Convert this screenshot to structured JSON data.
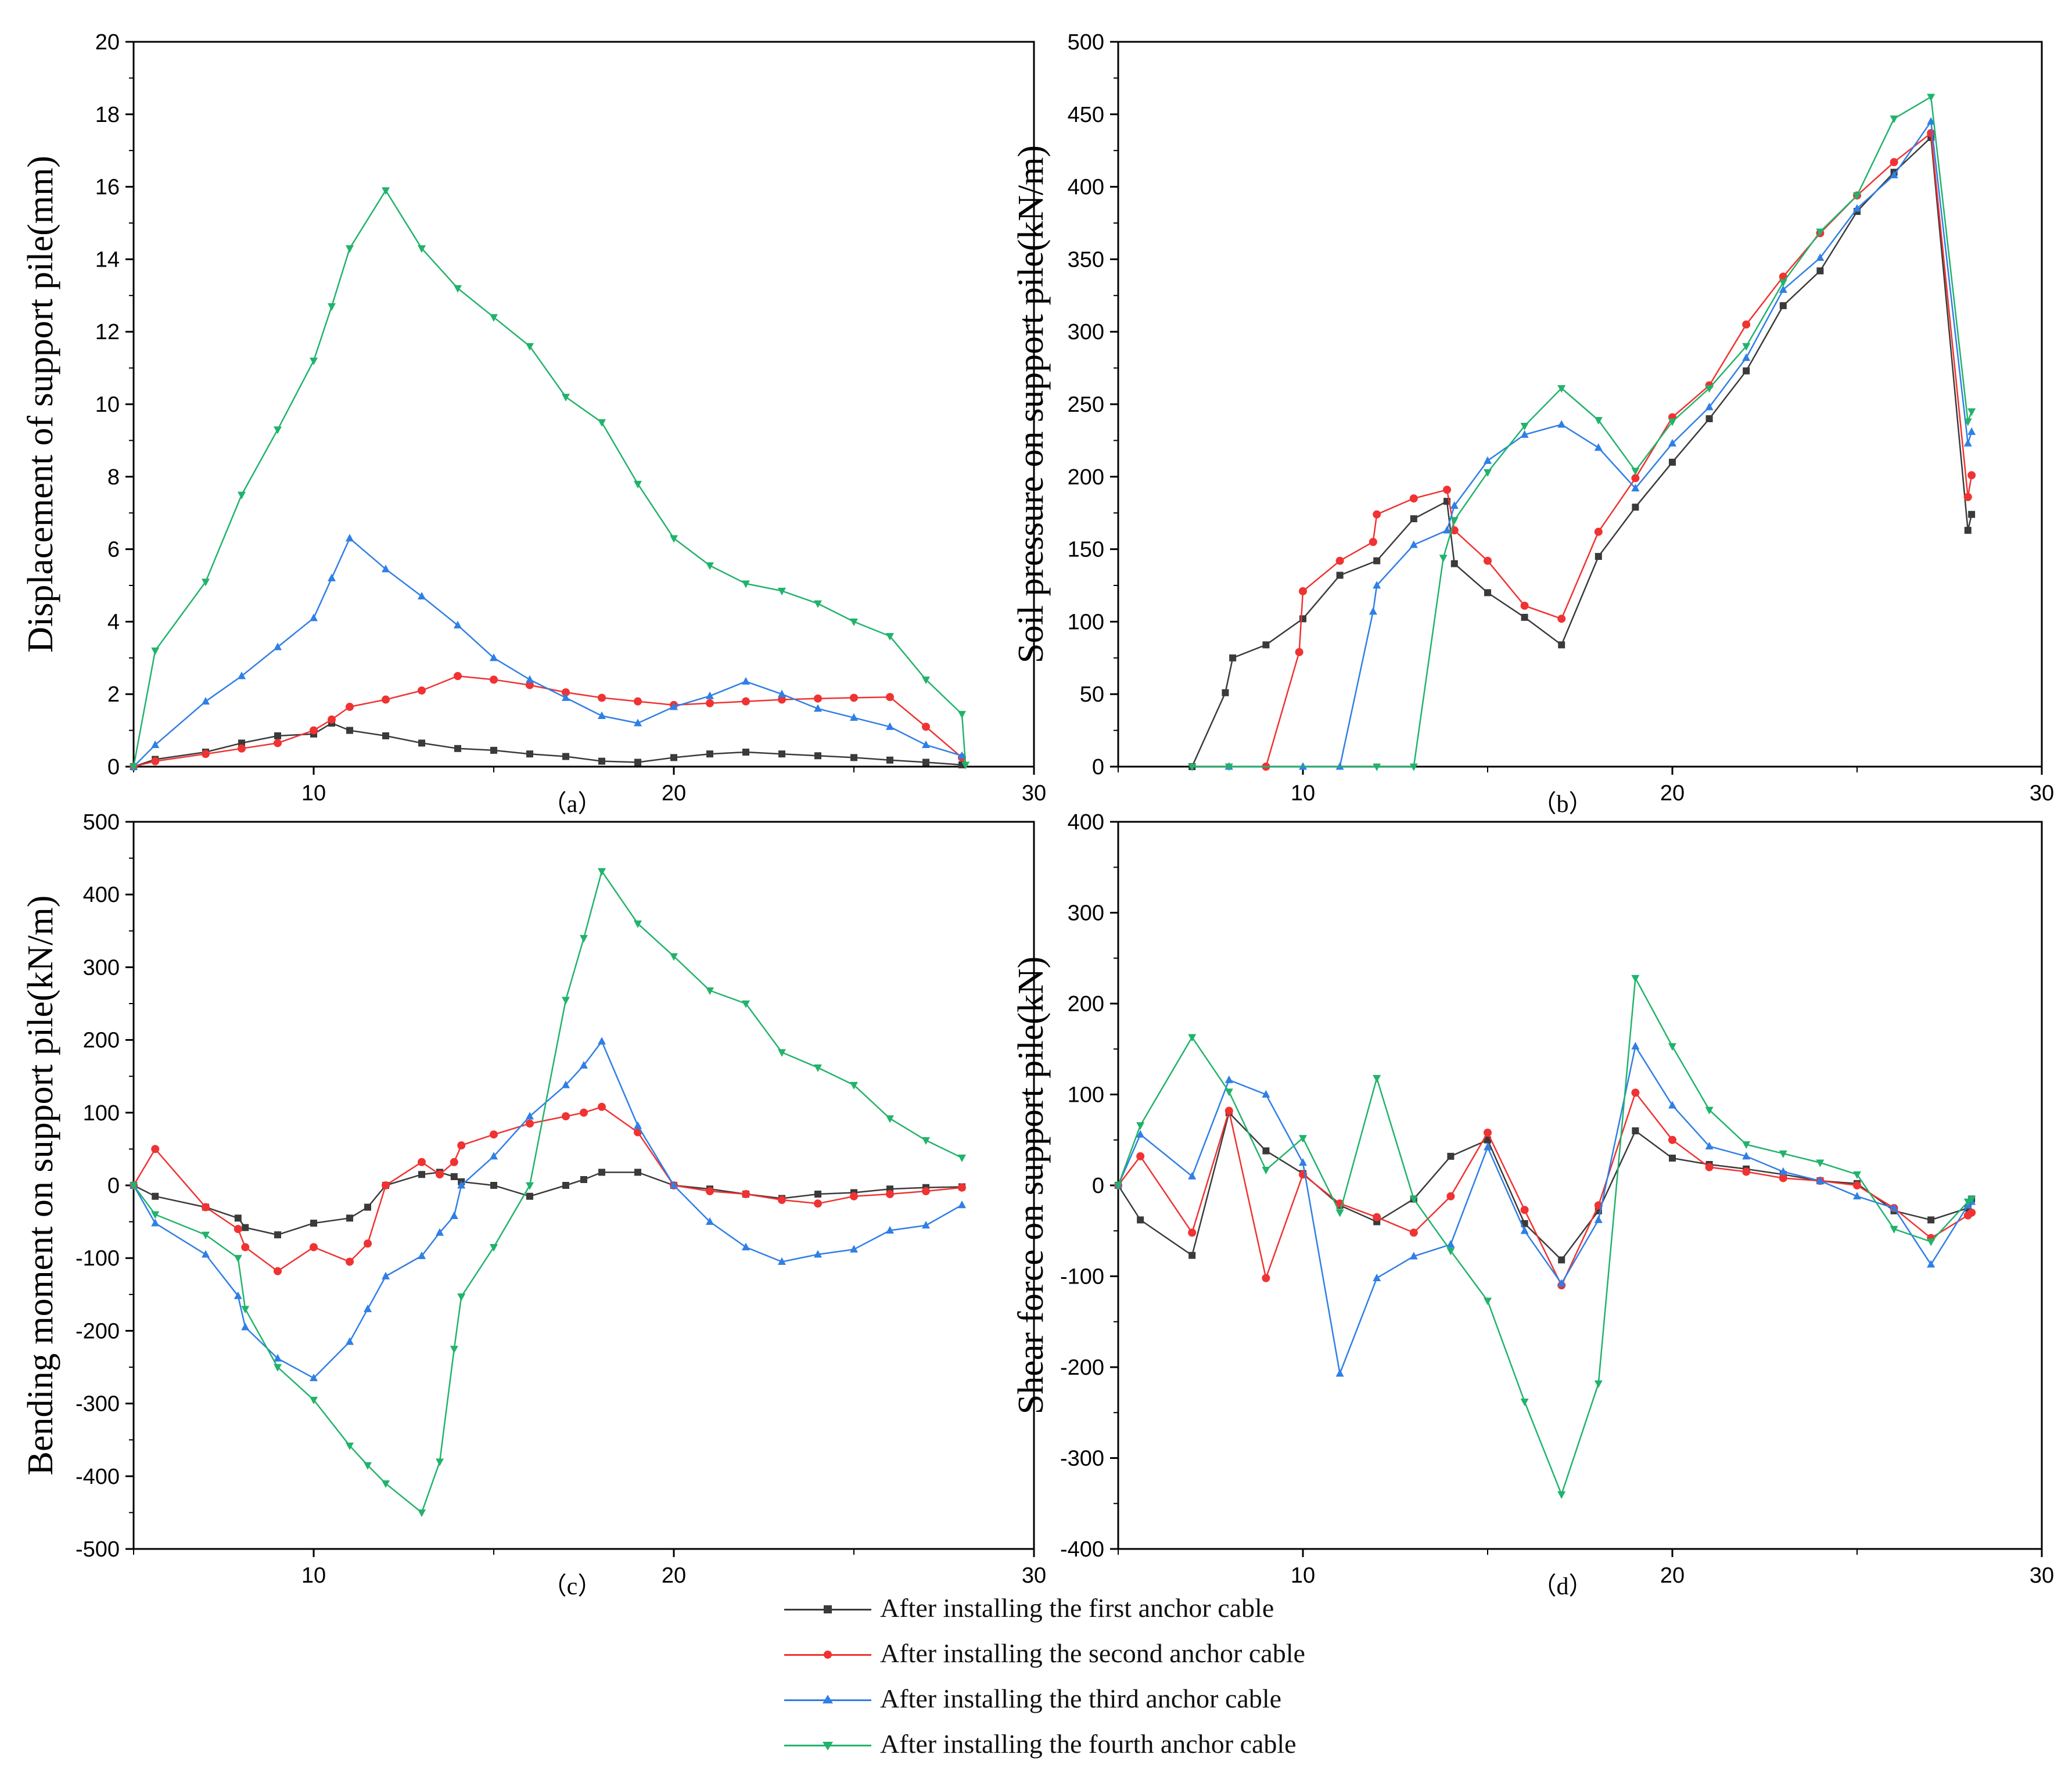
{
  "colors": {
    "s1": "#3a3a3a",
    "s2": "#f03232",
    "s3": "#2f7fe6",
    "s4": "#21b36b"
  },
  "legend": {
    "items": [
      {
        "label": "After installing the first anchor cable",
        "color": "#3a3a3a",
        "marker": "square"
      },
      {
        "label": "After installing the second anchor cable",
        "color": "#f03232",
        "marker": "circle"
      },
      {
        "label": "After installing the third anchor cable",
        "color": "#2f7fe6",
        "marker": "triangle-up"
      },
      {
        "label": "After installing the fourth anchor cable",
        "color": "#21b36b",
        "marker": "triangle-down"
      }
    ]
  },
  "chart_data": [
    {
      "id": "a",
      "type": "line",
      "caption": "（a）",
      "ylabel": "Displacement of support pile(mm)",
      "xlabel": "",
      "xlim": [
        5,
        30
      ],
      "ylim": [
        0,
        20
      ],
      "xticks": [
        10,
        20,
        30
      ],
      "yticks": [
        0,
        2,
        4,
        6,
        8,
        10,
        12,
        14,
        16,
        18,
        20
      ],
      "series": [
        {
          "name": "After installing the first anchor cable",
          "x": [
            5,
            5.6,
            7,
            8,
            9,
            10,
            10.5,
            11,
            12,
            13,
            14,
            15,
            16,
            17,
            18,
            19,
            20,
            21,
            22,
            23,
            24,
            25,
            26,
            27,
            28
          ],
          "y": [
            0,
            0.2,
            0.4,
            0.65,
            0.85,
            0.9,
            1.2,
            1.0,
            0.85,
            0.65,
            0.5,
            0.45,
            0.35,
            0.28,
            0.15,
            0.12,
            0.25,
            0.35,
            0.4,
            0.35,
            0.3,
            0.25,
            0.18,
            0.12,
            0.05
          ]
        },
        {
          "name": "After installing the second anchor cable",
          "x": [
            5,
            5.6,
            7,
            8,
            9,
            10,
            10.5,
            11,
            12,
            13,
            14,
            15,
            16,
            17,
            18,
            19,
            20,
            21,
            22,
            23,
            24,
            25,
            26,
            27,
            28
          ],
          "y": [
            0,
            0.15,
            0.35,
            0.5,
            0.65,
            1.0,
            1.3,
            1.65,
            1.85,
            2.1,
            2.5,
            2.4,
            2.25,
            2.05,
            1.9,
            1.8,
            1.7,
            1.75,
            1.8,
            1.85,
            1.88,
            1.9,
            1.92,
            1.1,
            0.25
          ]
        },
        {
          "name": "After installing the third anchor cable",
          "x": [
            5,
            5.6,
            7,
            8,
            9,
            10,
            10.5,
            11,
            12,
            13,
            14,
            15,
            16,
            17,
            18,
            19,
            20,
            21,
            22,
            23,
            24,
            25,
            26,
            27,
            28
          ],
          "y": [
            0,
            0.6,
            1.8,
            2.5,
            3.3,
            4.1,
            5.2,
            6.3,
            5.45,
            4.7,
            3.9,
            3.0,
            2.4,
            1.9,
            1.4,
            1.2,
            1.65,
            1.95,
            2.35,
            2.0,
            1.6,
            1.35,
            1.1,
            0.6,
            0.3
          ]
        },
        {
          "name": "After installing the fourth anchor cable",
          "x": [
            5,
            5.6,
            7,
            8,
            9,
            10,
            10.5,
            11,
            12,
            13,
            14,
            15,
            16,
            17,
            18,
            19,
            20,
            21,
            22,
            23,
            24,
            25,
            26,
            27,
            28,
            28.1
          ],
          "y": [
            0,
            3.2,
            5.1,
            7.5,
            9.3,
            11.2,
            12.7,
            14.3,
            15.9,
            14.3,
            13.2,
            12.4,
            11.6,
            10.2,
            9.5,
            7.8,
            6.3,
            5.55,
            5.05,
            4.85,
            4.5,
            4.0,
            3.6,
            2.4,
            1.45,
            0.05
          ]
        }
      ]
    },
    {
      "id": "b",
      "type": "line",
      "caption": "（b）",
      "ylabel": "Soil pressure on support pile(kN/m)",
      "xlabel": "",
      "xlim": [
        5,
        30
      ],
      "ylim": [
        0,
        500
      ],
      "xticks": [
        10,
        20,
        30
      ],
      "yticks": [
        0,
        50,
        100,
        150,
        200,
        250,
        300,
        350,
        400,
        450,
        500
      ],
      "series": [
        {
          "name": "After installing the first anchor cable",
          "x": [
            7,
            7.9,
            8.1,
            9,
            10,
            11,
            12,
            13,
            13.9,
            14.1,
            15,
            16,
            17,
            18,
            19,
            20,
            21,
            22,
            23,
            24,
            25,
            26,
            27,
            28,
            28.1
          ],
          "y": [
            0,
            51,
            75,
            84,
            102,
            132,
            142,
            171,
            183,
            140,
            120,
            103,
            84,
            145,
            179,
            210,
            240,
            273,
            318,
            342,
            383,
            410,
            434,
            163,
            174
          ]
        },
        {
          "name": "After installing the second anchor cable",
          "x": [
            9,
            9.9,
            10,
            11,
            11.9,
            12,
            13,
            13.9,
            14.1,
            15,
            16,
            17,
            18,
            19,
            20,
            21,
            22,
            23,
            24,
            25,
            26,
            27,
            28,
            28.1
          ],
          "y": [
            0,
            79,
            121,
            142,
            155,
            174,
            185,
            191,
            163,
            142,
            111,
            102,
            162,
            199,
            241,
            263,
            305,
            338,
            368,
            394,
            417,
            437,
            186,
            201
          ]
        },
        {
          "name": "After installing the third anchor cable",
          "x": [
            8,
            10,
            11,
            11.9,
            12,
            13,
            13.9,
            14.1,
            15,
            16,
            17,
            18,
            19,
            20,
            21,
            22,
            23,
            24,
            25,
            26,
            27,
            28,
            28.1
          ],
          "y": [
            0,
            0,
            0,
            107,
            125,
            153,
            163,
            180,
            211,
            229,
            236,
            220,
            192,
            223,
            248,
            282,
            329,
            351,
            385,
            408,
            445,
            223,
            231
          ]
        },
        {
          "name": "After installing the fourth anchor cable",
          "x": [
            7,
            8,
            12,
            13,
            13.8,
            14.1,
            15,
            16,
            17,
            18,
            19,
            20,
            21,
            22,
            23,
            24,
            25,
            26,
            27,
            28,
            28.1
          ],
          "y": [
            0,
            0,
            0,
            0,
            144,
            170,
            203,
            235,
            261,
            239,
            204,
            238,
            261,
            290,
            334,
            369,
            394,
            447,
            462,
            238,
            245
          ]
        }
      ]
    },
    {
      "id": "c",
      "type": "line",
      "caption": "（c）",
      "ylabel": "Bending moment on support pile(kN/m)",
      "xlabel": "",
      "xlim": [
        5,
        30
      ],
      "ylim": [
        -500,
        500
      ],
      "xticks": [
        10,
        20,
        30
      ],
      "yticks": [
        -500,
        -400,
        -300,
        -200,
        -100,
        0,
        100,
        200,
        300,
        400,
        500
      ],
      "series": [
        {
          "name": "After installing the first anchor cable",
          "x": [
            5,
            5.6,
            7,
            7.9,
            8.1,
            9,
            10,
            11,
            11.5,
            12,
            13,
            13.5,
            13.9,
            14.1,
            15,
            16,
            17,
            17.5,
            18,
            19,
            20,
            21,
            22,
            23,
            24,
            25,
            26,
            27,
            28
          ],
          "y": [
            0,
            -15,
            -30,
            -45,
            -58,
            -68,
            -52,
            -45,
            -30,
            0,
            15,
            18,
            12,
            5,
            0,
            -15,
            0,
            8,
            18,
            18,
            0,
            -5,
            -12,
            -18,
            -12,
            -10,
            -5,
            -3,
            -2
          ]
        },
        {
          "name": "After installing the second anchor cable",
          "x": [
            5,
            5.6,
            7,
            7.9,
            8.1,
            9,
            10,
            11,
            11.5,
            12,
            13,
            13.5,
            13.9,
            14.1,
            15,
            16,
            17,
            17.5,
            18,
            19,
            20,
            21,
            22,
            23,
            24,
            25,
            26,
            27,
            28
          ],
          "y": [
            0,
            50,
            -30,
            -60,
            -85,
            -118,
            -85,
            -105,
            -80,
            0,
            32,
            15,
            32,
            55,
            70,
            85,
            95,
            100,
            108,
            73,
            0,
            -8,
            -12,
            -20,
            -25,
            -15,
            -12,
            -8,
            -3
          ]
        },
        {
          "name": "After installing the third anchor cable",
          "x": [
            5,
            5.6,
            7,
            7.9,
            8.1,
            9,
            10,
            11,
            11.5,
            12,
            13,
            13.5,
            13.9,
            14.1,
            15,
            16,
            17,
            17.5,
            18,
            19,
            20,
            21,
            22,
            23,
            24,
            25,
            26,
            27,
            28
          ],
          "y": [
            0,
            -52,
            -95,
            -152,
            -195,
            -238,
            -265,
            -215,
            -170,
            -125,
            -97,
            -65,
            -42,
            0,
            40,
            95,
            138,
            165,
            198,
            82,
            0,
            -50,
            -85,
            -105,
            -95,
            -88,
            -62,
            -55,
            -27
          ]
        },
        {
          "name": "After installing the fourth anchor cable",
          "x": [
            5,
            5.6,
            7,
            7.9,
            8.1,
            9,
            10,
            11,
            11.5,
            12,
            13,
            13.5,
            13.9,
            14.1,
            15,
            16,
            17,
            17.5,
            18,
            19,
            20,
            21,
            22,
            23,
            24,
            25,
            26,
            27,
            28
          ],
          "y": [
            0,
            -40,
            -68,
            -100,
            -170,
            -250,
            -295,
            -358,
            -385,
            -410,
            -450,
            -380,
            -225,
            -153,
            -85,
            0,
            255,
            340,
            432,
            360,
            315,
            268,
            250,
            183,
            162,
            138,
            92,
            62,
            38
          ]
        }
      ]
    },
    {
      "id": "d",
      "type": "line",
      "caption": "（d）",
      "ylabel": "Shear force on support pile(kN)",
      "xlabel": "",
      "xlim": [
        5,
        30
      ],
      "ylim": [
        -400,
        400
      ],
      "xticks": [
        10,
        20,
        30
      ],
      "yticks": [
        -400,
        -300,
        -200,
        -100,
        0,
        100,
        200,
        300,
        400
      ],
      "series": [
        {
          "name": "After installing the first anchor cable",
          "x": [
            5,
            5.6,
            7,
            8,
            9,
            10,
            11,
            12,
            13,
            14,
            15,
            16,
            17,
            18,
            19,
            20,
            21,
            22,
            23,
            24,
            25,
            26,
            27,
            28,
            28.1
          ],
          "y": [
            0,
            -38,
            -77,
            80,
            38,
            13,
            -22,
            -40,
            -15,
            32,
            50,
            -42,
            -82,
            -28,
            60,
            30,
            23,
            18,
            12,
            5,
            2,
            -28,
            -38,
            -25,
            -15
          ]
        },
        {
          "name": "After installing the second anchor cable",
          "x": [
            5,
            5.6,
            7,
            8,
            9,
            10,
            11,
            12,
            13,
            14,
            15,
            16,
            17,
            18,
            19,
            20,
            21,
            22,
            23,
            24,
            25,
            26,
            27,
            28,
            28.1
          ],
          "y": [
            0,
            32,
            -52,
            82,
            -102,
            12,
            -20,
            -35,
            -52,
            -12,
            58,
            -27,
            -110,
            -22,
            102,
            50,
            20,
            15,
            8,
            5,
            0,
            -25,
            -58,
            -33,
            -30
          ]
        },
        {
          "name": "After installing the third anchor cable",
          "x": [
            5,
            5.6,
            7,
            8,
            9,
            10,
            11,
            12,
            13,
            14,
            15,
            16,
            17,
            18,
            19,
            20,
            21,
            22,
            23,
            24,
            25,
            26,
            27,
            28,
            28.1
          ],
          "y": [
            0,
            56,
            10,
            116,
            100,
            25,
            -207,
            -102,
            -78,
            -65,
            42,
            -50,
            -108,
            -38,
            153,
            88,
            43,
            32,
            15,
            5,
            -12,
            -25,
            -87,
            -22,
            -18
          ]
        },
        {
          "name": "After installing the fourth anchor cable",
          "x": [
            5,
            5.6,
            7,
            8,
            9,
            10,
            11,
            12,
            13,
            14,
            15,
            16,
            17,
            18,
            19,
            20,
            21,
            22,
            23,
            24,
            25,
            26,
            27,
            28,
            28.1
          ],
          "y": [
            0,
            66,
            163,
            103,
            17,
            52,
            -30,
            118,
            -15,
            -72,
            -127,
            -238,
            -340,
            -218,
            228,
            153,
            83,
            45,
            35,
            25,
            12,
            -48,
            -62,
            -18,
            -15
          ]
        }
      ]
    }
  ]
}
